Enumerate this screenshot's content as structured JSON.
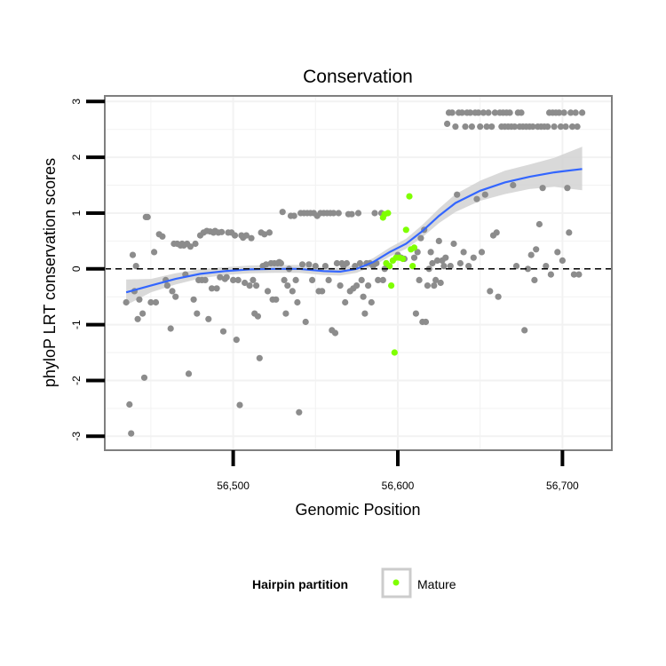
{
  "chart_data": {
    "type": "scatter",
    "title": "Conservation",
    "xlabel": "Genomic Position",
    "ylabel": "phyloP LRT conservation scores",
    "xlim": [
      56422,
      56730
    ],
    "ylim": [
      -3.25,
      3.1
    ],
    "x_ticks": [
      56500,
      56600,
      56700
    ],
    "x_tick_labels": [
      "56,500",
      "56,600",
      "56,700"
    ],
    "y_ticks": [
      3,
      2,
      1,
      0,
      -1,
      -2,
      -3
    ],
    "y_tick_labels": [
      "3",
      "2",
      "1",
      "0",
      "-1",
      "-2",
      "-3"
    ],
    "reference_line": {
      "y": 0,
      "style": "dashed",
      "color": "#000000"
    },
    "grid": true,
    "legend": {
      "title": "Hairpin partition",
      "position": "bottom",
      "entries": [
        {
          "label": "Mature",
          "color": "#7FFF00"
        }
      ]
    },
    "colors": {
      "other": "#8C8C8C",
      "mature": "#7FFF00",
      "smooth": "#3366FF",
      "band": "#D2D2D2",
      "panel_border": "#7F7F7F",
      "grid": "#F2F2F2"
    },
    "series": [
      {
        "color": "#8C8C8C",
        "points": [
          [
            56435,
            -0.6
          ],
          [
            56437,
            -2.43
          ],
          [
            56438,
            -2.95
          ],
          [
            56439,
            0.25
          ],
          [
            56440,
            -0.4
          ],
          [
            56441,
            0.05
          ],
          [
            56442,
            -0.9
          ],
          [
            56443,
            -0.55
          ],
          [
            56445,
            -0.8
          ],
          [
            56446,
            -1.95
          ],
          [
            56447,
            0.93
          ],
          [
            56448,
            0.93
          ],
          [
            56450,
            -0.6
          ],
          [
            56452,
            0.3
          ],
          [
            56453,
            -0.6
          ],
          [
            56455,
            0.62
          ],
          [
            56457,
            0.58
          ],
          [
            56459,
            -0.2
          ],
          [
            56460,
            -0.3
          ],
          [
            56462,
            -1.07
          ],
          [
            56463,
            -0.4
          ],
          [
            56464,
            0.45
          ],
          [
            56465,
            -0.5
          ],
          [
            56466,
            0.45
          ],
          [
            56468,
            0.42
          ],
          [
            56469,
            0.45
          ],
          [
            56470,
            0.42
          ],
          [
            56471,
            -0.1
          ],
          [
            56472,
            0.45
          ],
          [
            56473,
            -1.88
          ],
          [
            56474,
            0.4
          ],
          [
            56476,
            -0.55
          ],
          [
            56477,
            0.45
          ],
          [
            56478,
            -0.8
          ],
          [
            56479,
            -0.2
          ],
          [
            56480,
            0.6
          ],
          [
            56481,
            -0.2
          ],
          [
            56482,
            0.65
          ],
          [
            56483,
            -0.2
          ],
          [
            56484,
            0.68
          ],
          [
            56485,
            -0.9
          ],
          [
            56486,
            0.67
          ],
          [
            56487,
            -0.35
          ],
          [
            56488,
            0.65
          ],
          [
            56489,
            0.68
          ],
          [
            56490,
            -0.35
          ],
          [
            56491,
            0.65
          ],
          [
            56492,
            -0.15
          ],
          [
            56493,
            0.66
          ],
          [
            56494,
            -1.12
          ],
          [
            56495,
            -0.18
          ],
          [
            56496,
            -0.15
          ],
          [
            56497,
            0.65
          ],
          [
            56499,
            0.65
          ],
          [
            56500,
            -0.2
          ],
          [
            56501,
            0.6
          ],
          [
            56502,
            -1.27
          ],
          [
            56503,
            -0.2
          ],
          [
            56504,
            -2.44
          ],
          [
            56505,
            0.6
          ],
          [
            56506,
            0.56
          ],
          [
            56507,
            -0.25
          ],
          [
            56508,
            0.6
          ],
          [
            56510,
            -0.3
          ],
          [
            56511,
            0.55
          ],
          [
            56512,
            -0.2
          ],
          [
            56513,
            -0.8
          ],
          [
            56514,
            -0.3
          ],
          [
            56515,
            -0.85
          ],
          [
            56516,
            -1.6
          ],
          [
            56517,
            0.65
          ],
          [
            56518,
            0.05
          ],
          [
            56519,
            0.62
          ],
          [
            56520,
            0.08
          ],
          [
            56521,
            -0.4
          ],
          [
            56522,
            0.65
          ],
          [
            56523,
            0.1
          ],
          [
            56524,
            -0.55
          ],
          [
            56525,
            0.1
          ],
          [
            56526,
            -0.55
          ],
          [
            56527,
            0.1
          ],
          [
            56528,
            0.12
          ],
          [
            56529,
            0.1
          ],
          [
            56530,
            1.02
          ],
          [
            56531,
            -0.2
          ],
          [
            56532,
            -0.8
          ],
          [
            56533,
            -0.3
          ],
          [
            56534,
            0.0
          ],
          [
            56535,
            0.95
          ],
          [
            56536,
            -0.4
          ],
          [
            56537,
            0.95
          ],
          [
            56538,
            -0.2
          ],
          [
            56539,
            -0.6
          ],
          [
            56540,
            -2.57
          ],
          [
            56541,
            1.0
          ],
          [
            56542,
            0.08
          ],
          [
            56543,
            1.0
          ],
          [
            56544,
            -0.95
          ],
          [
            56545,
            1.0
          ],
          [
            56546,
            0.08
          ],
          [
            56547,
            1.0
          ],
          [
            56548,
            -0.2
          ],
          [
            56549,
            1.0
          ],
          [
            56550,
            0.05
          ],
          [
            56551,
            0.95
          ],
          [
            56552,
            -0.4
          ],
          [
            56553,
            1.0
          ],
          [
            56554,
            -0.4
          ],
          [
            56555,
            1.0
          ],
          [
            56556,
            0.05
          ],
          [
            56557,
            1.0
          ],
          [
            56558,
            -0.2
          ],
          [
            56559,
            1.0
          ],
          [
            56560,
            -1.1
          ],
          [
            56561,
            1.0
          ],
          [
            56562,
            -1.15
          ],
          [
            56563,
            0.1
          ],
          [
            56564,
            1.0
          ],
          [
            56565,
            -0.3
          ],
          [
            56566,
            0.1
          ],
          [
            56567,
            0.05
          ],
          [
            56568,
            -0.6
          ],
          [
            56569,
            0.1
          ],
          [
            56570,
            0.98
          ],
          [
            56571,
            -0.4
          ],
          [
            56572,
            0.98
          ],
          [
            56573,
            -0.35
          ],
          [
            56574,
            0.05
          ],
          [
            56575,
            -0.3
          ],
          [
            56576,
            1.0
          ],
          [
            56577,
            0.1
          ],
          [
            56578,
            -0.2
          ],
          [
            56579,
            -0.5
          ],
          [
            56580,
            -0.8
          ],
          [
            56581,
            0.1
          ],
          [
            56582,
            -0.3
          ],
          [
            56583,
            0.1
          ],
          [
            56584,
            -0.6
          ],
          [
            56585,
            0.05
          ],
          [
            56586,
            1.0
          ],
          [
            56587,
            0.1
          ],
          [
            56588,
            -0.2
          ],
          [
            56590,
            1.0
          ],
          [
            56591,
            -0.2
          ],
          [
            56592,
            0.0
          ],
          [
            56593,
            0.1
          ],
          [
            56600,
            0.25
          ],
          [
            56602,
            0.2
          ],
          [
            56604,
            0.18
          ],
          [
            56610,
            0.2
          ],
          [
            56611,
            -0.8
          ],
          [
            56612,
            0.3
          ],
          [
            56613,
            -0.2
          ],
          [
            56614,
            0.55
          ],
          [
            56615,
            -0.95
          ],
          [
            56616,
            0.7
          ],
          [
            56617,
            -0.95
          ],
          [
            56618,
            -0.3
          ],
          [
            56619,
            0.0
          ],
          [
            56620,
            0.3
          ],
          [
            56621,
            0.1
          ],
          [
            56622,
            -0.3
          ],
          [
            56623,
            -0.2
          ],
          [
            56624,
            0.15
          ],
          [
            56625,
            0.5
          ],
          [
            56626,
            -0.25
          ],
          [
            56627,
            0.15
          ],
          [
            56628,
            0.05
          ],
          [
            56629,
            0.2
          ],
          [
            56630,
            2.6
          ],
          [
            56631,
            2.8
          ],
          [
            56632,
            0.05
          ],
          [
            56633,
            2.8
          ],
          [
            56634,
            0.45
          ],
          [
            56635,
            2.55
          ],
          [
            56636,
            1.33
          ],
          [
            56637,
            2.8
          ],
          [
            56638,
            0.1
          ],
          [
            56639,
            2.8
          ],
          [
            56640,
            0.3
          ],
          [
            56641,
            2.55
          ],
          [
            56642,
            2.8
          ],
          [
            56643,
            0.05
          ],
          [
            56644,
            2.8
          ],
          [
            56645,
            2.55
          ],
          [
            56646,
            0.2
          ],
          [
            56647,
            2.8
          ],
          [
            56648,
            1.25
          ],
          [
            56649,
            2.8
          ],
          [
            56650,
            2.55
          ],
          [
            56651,
            0.3
          ],
          [
            56652,
            2.8
          ],
          [
            56653,
            1.33
          ],
          [
            56654,
            2.55
          ],
          [
            56655,
            2.8
          ],
          [
            56656,
            -0.4
          ],
          [
            56657,
            2.55
          ],
          [
            56658,
            0.6
          ],
          [
            56659,
            2.8
          ],
          [
            56660,
            0.65
          ],
          [
            56661,
            -0.5
          ],
          [
            56662,
            2.8
          ],
          [
            56663,
            2.55
          ],
          [
            56664,
            2.8
          ],
          [
            56665,
            2.55
          ],
          [
            56666,
            2.8
          ],
          [
            56667,
            2.55
          ],
          [
            56668,
            2.8
          ],
          [
            56669,
            2.55
          ],
          [
            56670,
            1.5
          ],
          [
            56671,
            2.55
          ],
          [
            56672,
            0.05
          ],
          [
            56673,
            2.8
          ],
          [
            56674,
            2.55
          ],
          [
            56675,
            2.8
          ],
          [
            56676,
            2.55
          ],
          [
            56677,
            -1.1
          ],
          [
            56678,
            2.55
          ],
          [
            56679,
            0.0
          ],
          [
            56680,
            2.55
          ],
          [
            56681,
            0.25
          ],
          [
            56682,
            2.55
          ],
          [
            56683,
            -0.2
          ],
          [
            56684,
            0.35
          ],
          [
            56685,
            2.55
          ],
          [
            56686,
            0.8
          ],
          [
            56687,
            2.55
          ],
          [
            56688,
            1.45
          ],
          [
            56689,
            2.55
          ],
          [
            56690,
            0.05
          ],
          [
            56691,
            2.55
          ],
          [
            56692,
            2.8
          ],
          [
            56693,
            -0.1
          ],
          [
            56694,
            2.8
          ],
          [
            56695,
            2.55
          ],
          [
            56696,
            2.8
          ],
          [
            56697,
            0.3
          ],
          [
            56698,
            2.8
          ],
          [
            56699,
            2.55
          ],
          [
            56700,
            0.15
          ],
          [
            56701,
            2.8
          ],
          [
            56702,
            2.55
          ],
          [
            56703,
            1.45
          ],
          [
            56704,
            0.65
          ],
          [
            56705,
            2.8
          ],
          [
            56706,
            2.55
          ],
          [
            56707,
            -0.1
          ],
          [
            56708,
            2.8
          ],
          [
            56709,
            2.55
          ],
          [
            56710,
            -0.1
          ],
          [
            56712,
            2.8
          ]
        ]
      },
      {
        "name": "Mature",
        "color": "#7FFF00",
        "points": [
          [
            56591,
            0.92
          ],
          [
            56592,
            0.98
          ],
          [
            56593,
            0.1
          ],
          [
            56594,
            1.0
          ],
          [
            56595,
            0.05
          ],
          [
            56596,
            -0.3
          ],
          [
            56597,
            0.15
          ],
          [
            56598,
            -1.5
          ],
          [
            56599,
            0.2
          ],
          [
            56601,
            0.2
          ],
          [
            56603,
            0.18
          ],
          [
            56605,
            0.7
          ],
          [
            56607,
            1.3
          ],
          [
            56608,
            0.35
          ],
          [
            56609,
            0.05
          ],
          [
            56610,
            0.38
          ]
        ]
      }
    ],
    "smooth": {
      "x": [
        56435,
        56450,
        56465,
        56480,
        56495,
        56510,
        56525,
        56540,
        56555,
        56565,
        56575,
        56585,
        56595,
        56605,
        56615,
        56625,
        56635,
        56650,
        56665,
        56680,
        56695,
        56712
      ],
      "y": [
        -0.42,
        -0.3,
        -0.18,
        -0.09,
        -0.04,
        -0.01,
        0.0,
        0.0,
        -0.04,
        -0.05,
        0.0,
        0.12,
        0.3,
        0.45,
        0.68,
        0.95,
        1.18,
        1.4,
        1.55,
        1.65,
        1.73,
        1.79
      ],
      "lower": [
        -0.65,
        -0.42,
        -0.28,
        -0.17,
        -0.11,
        -0.08,
        -0.07,
        -0.07,
        -0.11,
        -0.12,
        -0.07,
        0.05,
        0.22,
        0.36,
        0.57,
        0.82,
        1.02,
        1.22,
        1.34,
        1.43,
        1.47,
        1.41
      ],
      "upper": [
        -0.19,
        -0.18,
        -0.08,
        -0.01,
        0.03,
        0.06,
        0.07,
        0.07,
        0.03,
        0.02,
        0.07,
        0.19,
        0.38,
        0.54,
        0.79,
        1.08,
        1.34,
        1.58,
        1.76,
        1.87,
        1.99,
        2.19
      ]
    }
  }
}
